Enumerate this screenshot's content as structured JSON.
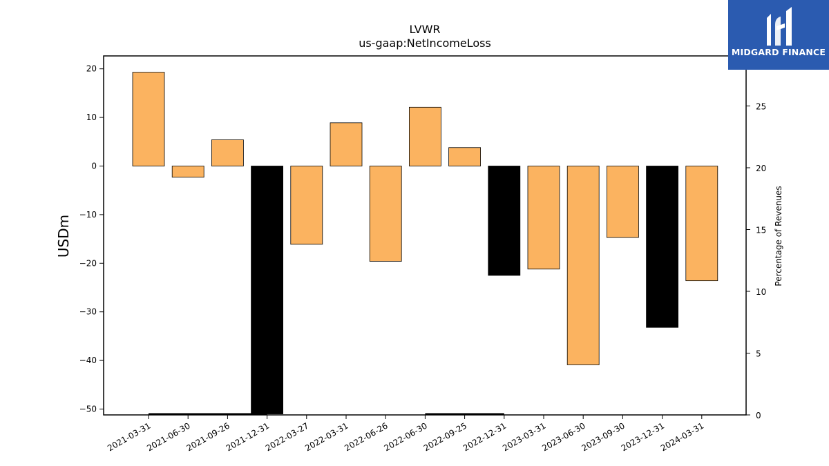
{
  "brand": {
    "name": "MIDGARD FINANCE",
    "color": "#2b5bb0"
  },
  "chart_data": {
    "type": "bar",
    "title": "LVWR",
    "subtitle": "us-gaap:NetIncomeLoss",
    "ylabel": "USDm",
    "y2label": "Percentage of Revenues",
    "ylim": [
      -51,
      22.5
    ],
    "y2lim": [
      0,
      29
    ],
    "yticks": [
      20,
      10,
      0,
      -10,
      -20,
      -30,
      -40,
      -50
    ],
    "y2ticks": [
      0,
      5,
      10,
      15,
      20,
      25
    ],
    "categories": [
      "2021-03-31",
      "2021-06-30",
      "2021-09-26",
      "2021-12-31",
      "2022-03-27",
      "2022-03-31",
      "2022-06-26",
      "2022-06-30",
      "2022-09-25",
      "2022-12-31",
      "2023-03-31",
      "2023-06-30",
      "2023-09-30",
      "2023-12-31",
      "2024-03-31"
    ],
    "series": [
      {
        "values": [
          19.3,
          -2.3,
          5.4,
          -51,
          -16.1,
          8.9,
          -19.6,
          12.1,
          3.8,
          -22.5,
          -21.2,
          -40.9,
          -14.7,
          -33.2,
          -23.6
        ],
        "colors": [
          "#fbb360",
          "#fbb360",
          "#fbb360",
          "#000000",
          "#fbb360",
          "#fbb360",
          "#fbb360",
          "#fbb360",
          "#fbb360",
          "#000000",
          "#fbb360",
          "#fbb360",
          "#fbb360",
          "#000000",
          "#fbb360"
        ]
      },
      {
        "values": [
          0,
          0,
          0,
          0,
          null,
          null,
          null,
          0,
          0,
          0,
          null,
          null,
          null,
          null,
          null
        ],
        "color": "#000000",
        "axis": "right",
        "style": "line"
      }
    ],
    "grid": false
  }
}
